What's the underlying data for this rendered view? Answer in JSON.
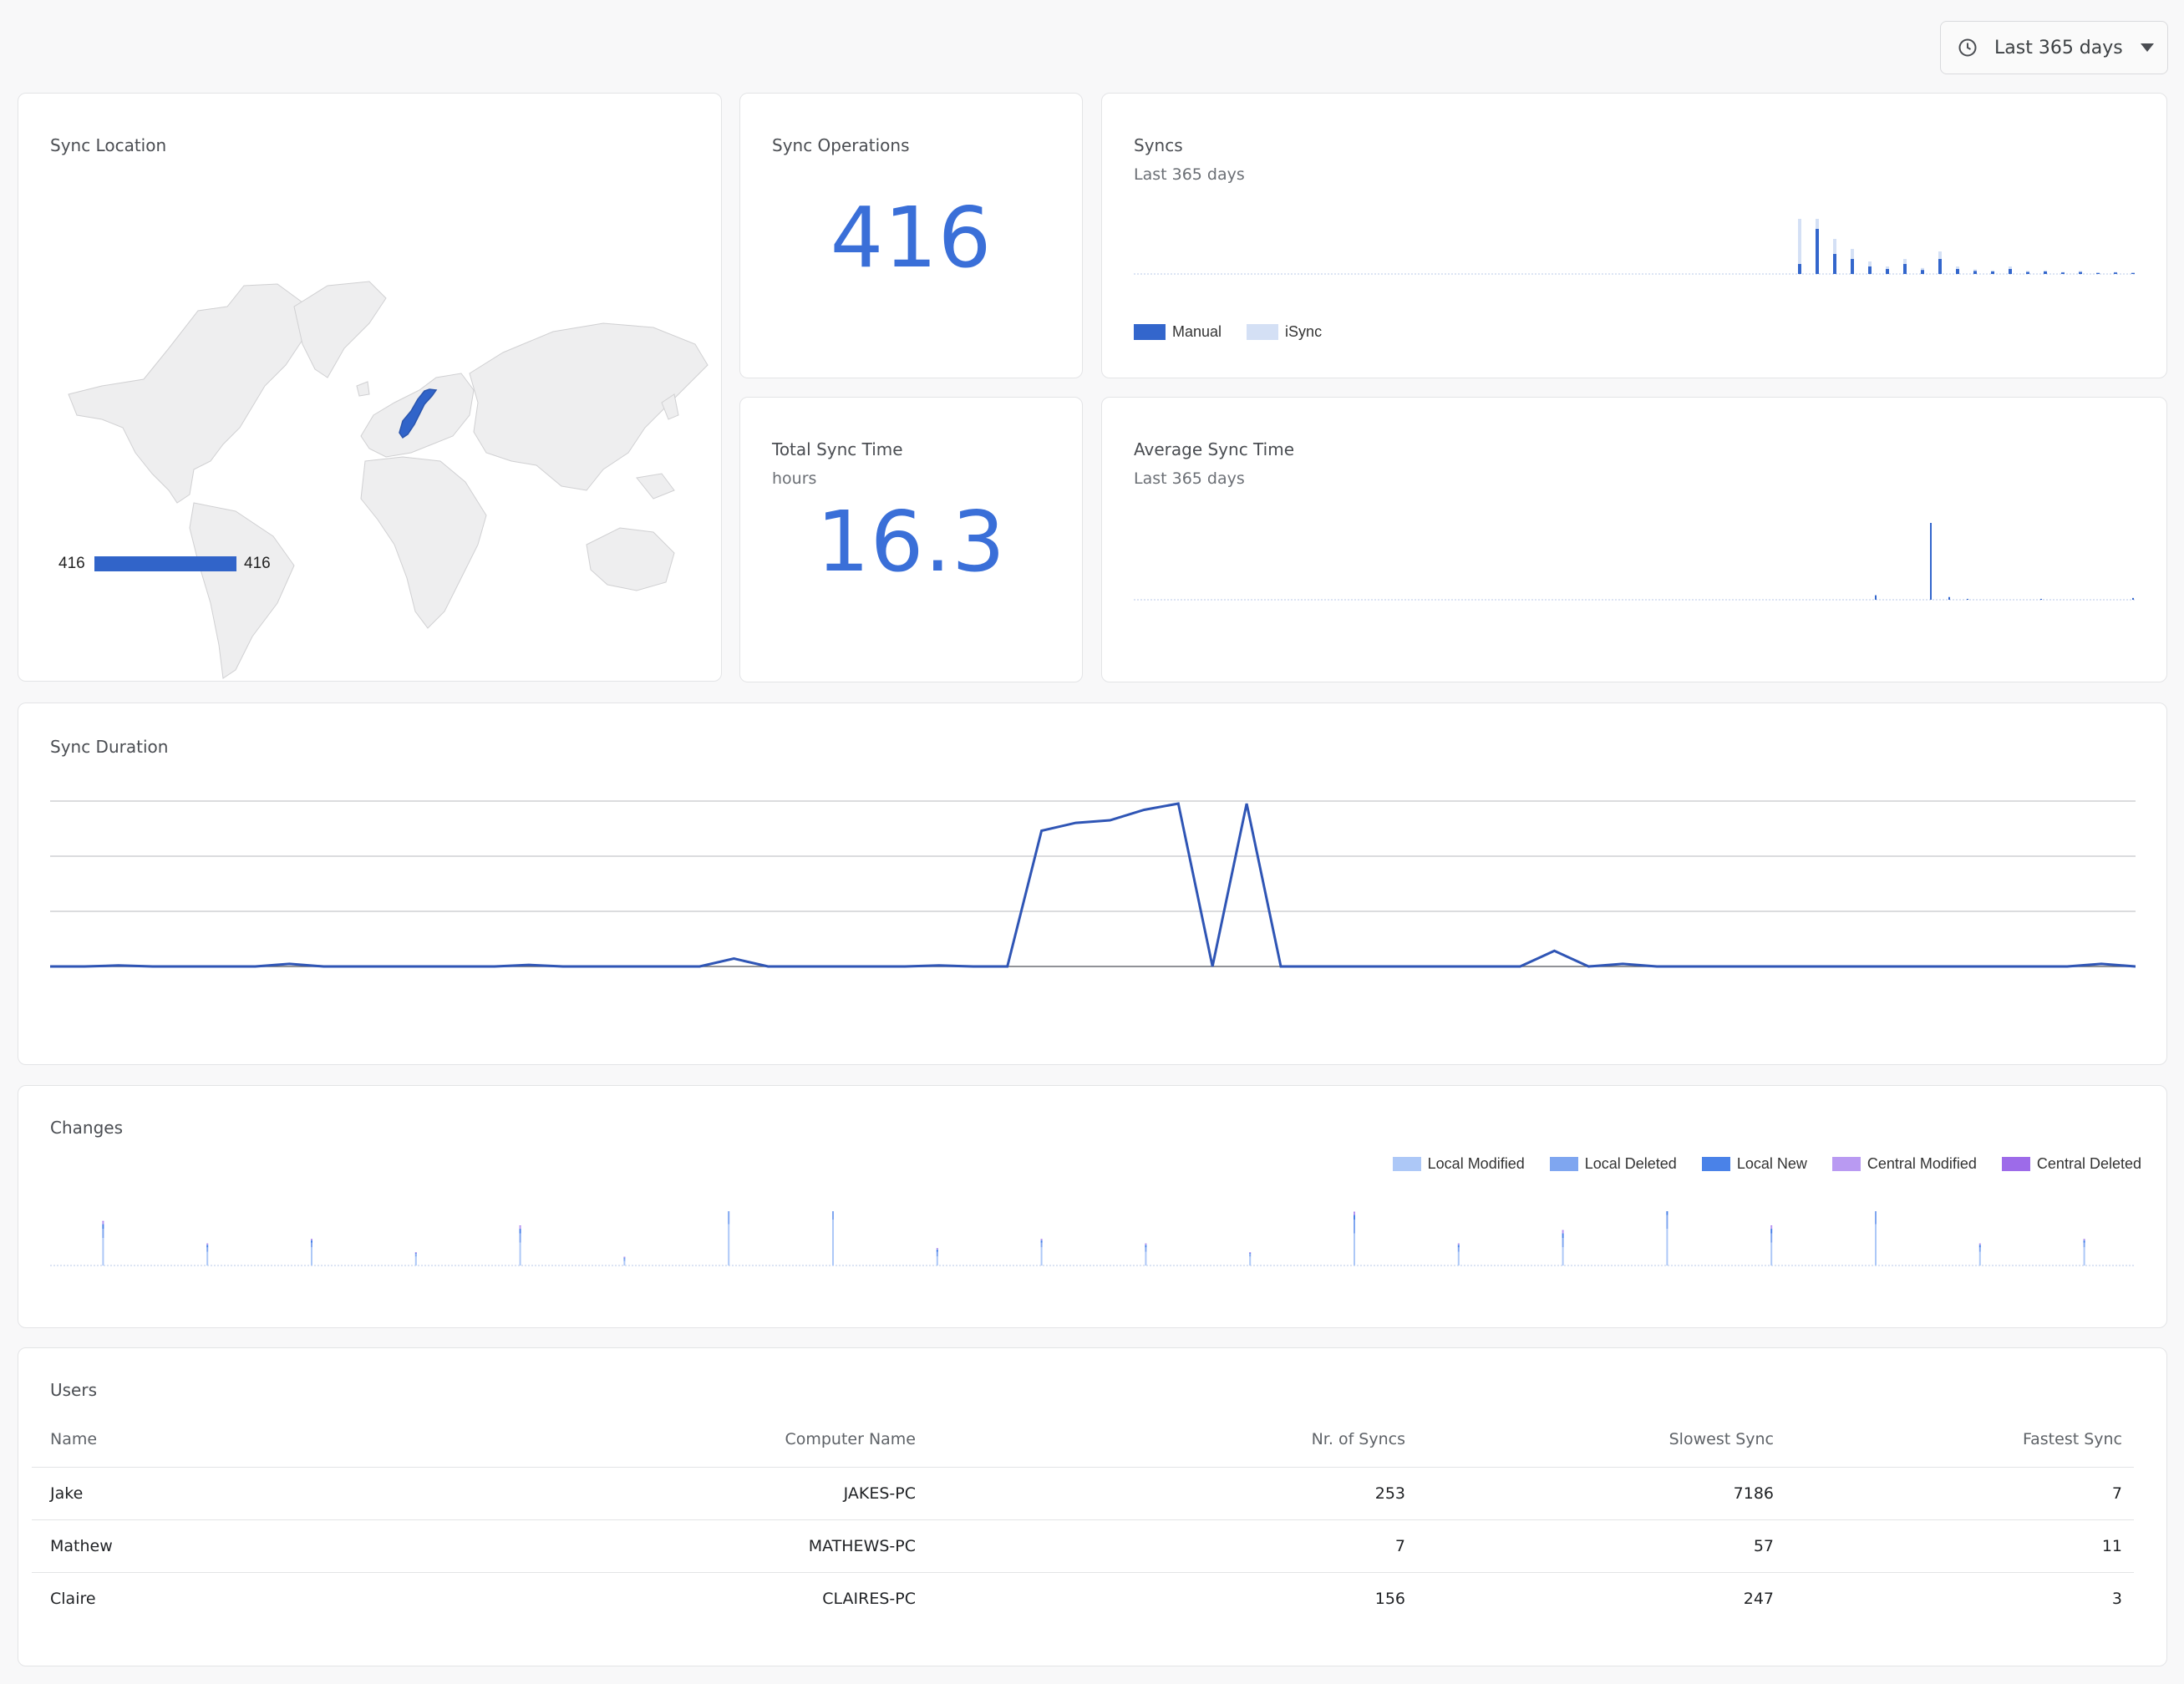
{
  "range_select": {
    "icon": "clock-icon",
    "label": "Last 365 days"
  },
  "sync_location": {
    "title": "Sync Location",
    "highlighted_region": "Norway",
    "scale_min": "416",
    "scale_max": "416",
    "color": "#3164c9"
  },
  "sync_operations": {
    "title": "Sync Operations",
    "value": "416"
  },
  "total_sync_time": {
    "title": "Total Sync Time",
    "subtitle": "hours",
    "value": "16.3"
  },
  "syncs": {
    "title": "Syncs",
    "subtitle": "Last 365 days",
    "legend": [
      {
        "label": "Manual",
        "color": "#3366cc"
      },
      {
        "label": "iSync",
        "color": "#d4e0f5"
      }
    ]
  },
  "avg_sync_time": {
    "title": "Average Sync Time",
    "subtitle": "Last 365 days"
  },
  "sync_duration": {
    "title": "Sync Duration"
  },
  "changes": {
    "title": "Changes",
    "legend": [
      {
        "label": "Local Modified",
        "color": "#adc8f7"
      },
      {
        "label": "Local Deleted",
        "color": "#7fa6f0"
      },
      {
        "label": "Local New",
        "color": "#4a82e8"
      },
      {
        "label": "Central Modified",
        "color": "#b99af2"
      },
      {
        "label": "Central Deleted",
        "color": "#9d6be9"
      }
    ]
  },
  "users": {
    "title": "Users",
    "columns": [
      "Name",
      "Computer Name",
      "Nr. of Syncs",
      "Slowest Sync",
      "Fastest Sync"
    ],
    "rows": [
      [
        "Jake",
        "JAKES-PC",
        "253",
        "7186",
        "7"
      ],
      [
        "Mathew",
        "MATHEWS-PC",
        "7",
        "57",
        "11"
      ],
      [
        "Claire",
        "CLAIRES-PC",
        "156",
        "247",
        "3"
      ]
    ]
  },
  "chart_data": [
    {
      "type": "bar",
      "title": "Syncs",
      "subtitle": "Last 365 days",
      "series": [
        {
          "name": "Manual",
          "values": [
            0.2,
            0.9,
            0.4,
            0.3,
            0.15,
            0.1,
            0.2,
            0.08,
            0.3,
            0.1,
            0.06,
            0.05,
            0.1,
            0.04,
            0.05,
            0.03,
            0.04,
            0.02,
            0.03,
            0.02
          ]
        },
        {
          "name": "iSync",
          "values": [
            1.0,
            0.6,
            0.3,
            0.2,
            0.1,
            0.05,
            0.1,
            0.04,
            0.15,
            0.05,
            0.03,
            0.02,
            0.05,
            0.02,
            0.02,
            0.01,
            0.02,
            0.01,
            0.01,
            0.01
          ]
        }
      ]
    },
    {
      "type": "line",
      "title": "Average Sync Time",
      "subtitle": "Last 365 days",
      "values": [
        0,
        0,
        0,
        0,
        0.05,
        0,
        0,
        1.0,
        0.03,
        0.01,
        0,
        0,
        0,
        0.01,
        0,
        0,
        0,
        0,
        0.02,
        0
      ]
    },
    {
      "type": "line",
      "title": "Sync Duration",
      "ylim": [
        0,
        4
      ],
      "grid": true,
      "values": [
        0,
        0,
        0.02,
        0,
        0,
        0,
        0,
        0.05,
        0,
        0,
        0,
        0,
        0,
        0,
        0.03,
        0,
        0,
        0,
        0,
        0,
        0.15,
        0,
        0,
        0,
        0,
        0,
        0.02,
        0,
        0,
        2.6,
        2.75,
        2.8,
        3.0,
        3.3,
        0,
        3.8,
        0,
        0,
        0,
        0,
        0,
        0,
        0,
        0,
        0.3,
        0,
        0.05,
        0,
        0,
        0,
        0,
        0,
        0,
        0,
        0,
        0,
        0,
        0,
        0,
        0,
        0.05,
        0
      ]
    },
    {
      "type": "bar",
      "title": "Changes",
      "series": [
        {
          "name": "Local Modified",
          "values": [
            0.6,
            0.3,
            0.4,
            0.2,
            0.5,
            0.1,
            0.9,
            1.0,
            0.2,
            0.4,
            0.3,
            0.2,
            0.7,
            0.3,
            0.4,
            0.8,
            0.5,
            0.9,
            0.3,
            0.4
          ]
        },
        {
          "name": "Local Deleted",
          "values": [
            0.2,
            0.1,
            0.1,
            0.05,
            0.2,
            0.05,
            0.3,
            0.4,
            0.1,
            0.1,
            0.1,
            0.05,
            0.3,
            0.1,
            0.2,
            0.3,
            0.2,
            0.3,
            0.1,
            0.1
          ]
        },
        {
          "name": "Local New",
          "values": [
            0.1,
            0.05,
            0.05,
            0.02,
            0.1,
            0.02,
            0.1,
            0.2,
            0.05,
            0.05,
            0.05,
            0.02,
            0.1,
            0.05,
            0.1,
            0.1,
            0.1,
            0.2,
            0.05,
            0.05
          ]
        },
        {
          "name": "Central Modified",
          "values": [
            0.05,
            0.02,
            0.02,
            0.01,
            0.05,
            0.01,
            0.05,
            0.1,
            0.02,
            0.02,
            0.02,
            0.01,
            0.05,
            0.02,
            0.05,
            0.05,
            0.05,
            0.1,
            0.02,
            0.02
          ]
        },
        {
          "name": "Central Deleted",
          "values": [
            0.02,
            0.01,
            0.01,
            0.01,
            0.02,
            0.01,
            0.02,
            0.05,
            0.01,
            0.01,
            0.01,
            0.01,
            0.02,
            0.01,
            0.02,
            0.02,
            0.02,
            0.05,
            0.01,
            0.01
          ]
        }
      ]
    }
  ]
}
